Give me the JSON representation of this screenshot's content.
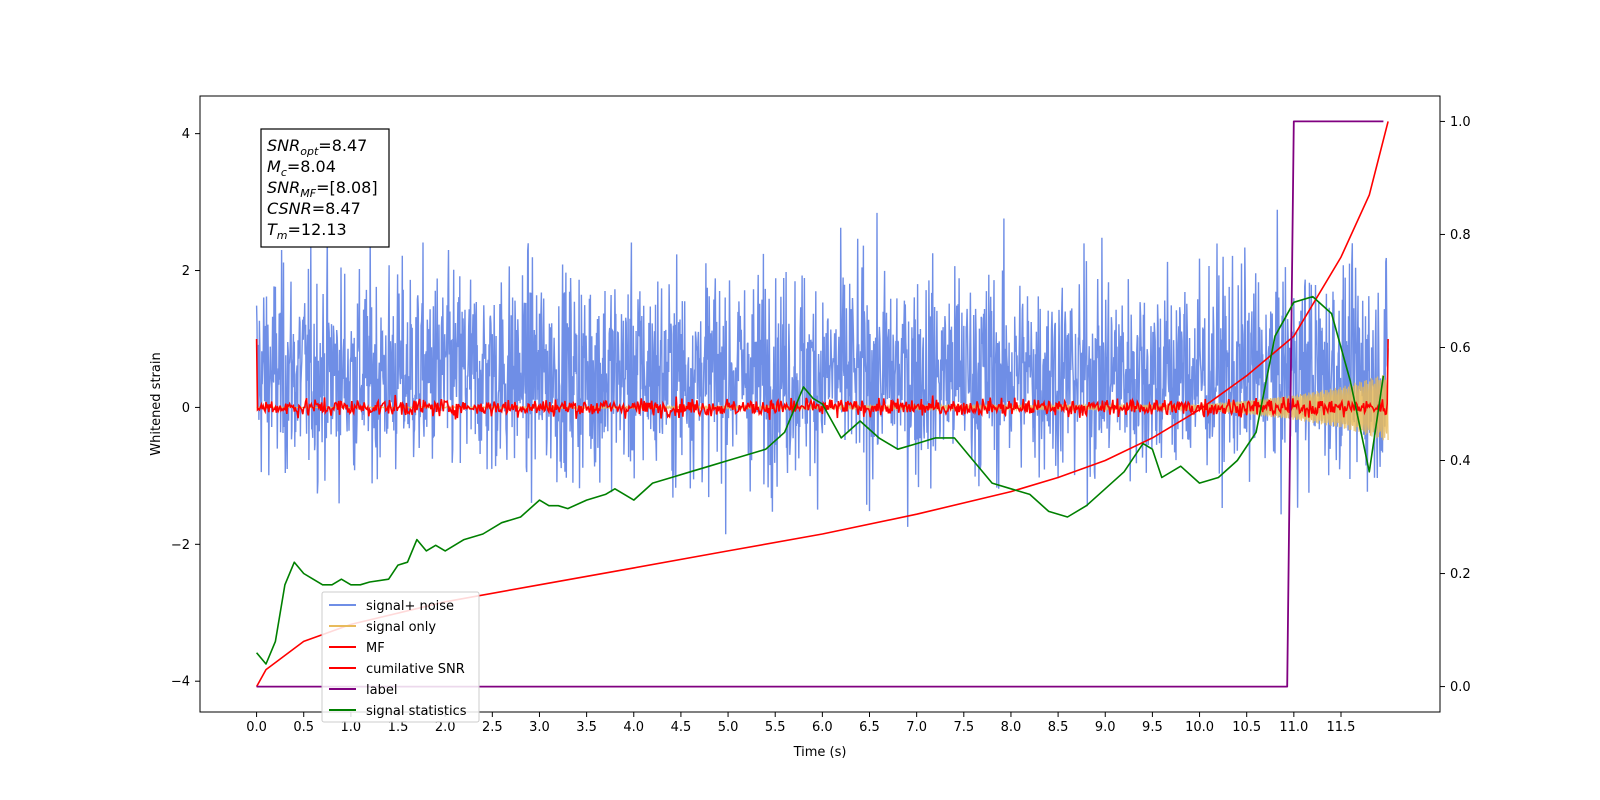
{
  "chart_data": {
    "type": "line",
    "xlabel": "Time (s)",
    "ylabel": "Whitened strain",
    "xlim": [
      -0.6,
      12.55
    ],
    "ylim": [
      -4.45,
      4.55
    ],
    "y2lim": [
      -0.045,
      1.045
    ],
    "x_ticks": [
      0.0,
      0.5,
      1.0,
      1.5,
      2.0,
      2.5,
      3.0,
      3.5,
      4.0,
      4.5,
      5.0,
      5.5,
      6.0,
      6.5,
      7.0,
      7.5,
      8.0,
      8.5,
      9.0,
      9.5,
      10.0,
      10.5,
      11.0,
      11.5
    ],
    "x_tick_labels": [
      "0.0",
      "0.5",
      "1.0",
      "1.5",
      "2.0",
      "2.5",
      "3.0",
      "3.5",
      "4.0",
      "4.5",
      "5.0",
      "5.5",
      "6.0",
      "6.5",
      "7.0",
      "7.5",
      "8.0",
      "8.5",
      "9.0",
      "9.5",
      "10.0",
      "10.5",
      "11.0",
      "11.5"
    ],
    "y_ticks": [
      4,
      2,
      0,
      -2,
      -4
    ],
    "y_tick_labels": [
      "4",
      "2",
      "0",
      "−2",
      "−4"
    ],
    "y2_ticks": [
      1.0,
      0.8,
      0.6,
      0.4,
      0.2,
      0.0
    ],
    "y2_tick_labels": [
      "1.0",
      "0.8",
      "0.6",
      "0.4",
      "0.2",
      "0.0"
    ],
    "grid": false,
    "legend_position": "lower-left",
    "annotation": {
      "lines": [
        {
          "main": "SNR",
          "sub": "opt",
          "value": "=8.47"
        },
        {
          "main": "M",
          "sub": "c",
          "value": "=8.04"
        },
        {
          "main": "SNR",
          "sub": "MF",
          "value": "=[8.08]"
        },
        {
          "main": "CSNR",
          "sub": "",
          "value": "=8.47"
        },
        {
          "main": "T",
          "sub": "m",
          "value": "=12.13"
        }
      ]
    },
    "series": [
      {
        "name": "signal+ noise",
        "axis": "left",
        "color": "#6f8ee6",
        "kind": "noise",
        "x_range": [
          0.0,
          12.0
        ],
        "baseline": 0.5,
        "band": [
          -2.9,
          4.1
        ]
      },
      {
        "name": "signal only",
        "axis": "left",
        "color": "#e8bb5c",
        "kind": "chirp",
        "x_range": [
          0.0,
          12.0
        ],
        "amplitude_end": 0.5,
        "envelope_points": [
          [
            10.0,
            0.04
          ],
          [
            10.5,
            0.1
          ],
          [
            11.0,
            0.18
          ],
          [
            11.5,
            0.3
          ],
          [
            12.0,
            0.5
          ]
        ]
      },
      {
        "name": "MF",
        "axis": "left",
        "color": "#ff0000",
        "kind": "noise",
        "x_range": [
          0.0,
          12.0
        ],
        "start_value": 1.0,
        "end_value": 1.0,
        "band": [
          -0.25,
          0.55
        ]
      },
      {
        "name": "cumilative SNR",
        "axis": "right",
        "color": "#ff0000",
        "x": [
          0.0,
          0.1,
          0.5,
          1.0,
          2.0,
          3.0,
          4.0,
          5.0,
          6.0,
          7.0,
          8.0,
          8.5,
          9.0,
          9.5,
          10.0,
          10.5,
          11.0,
          11.5,
          11.8,
          12.0
        ],
        "y": [
          0.0,
          0.03,
          0.08,
          0.11,
          0.15,
          0.18,
          0.21,
          0.24,
          0.27,
          0.305,
          0.345,
          0.37,
          0.4,
          0.44,
          0.49,
          0.55,
          0.62,
          0.76,
          0.87,
          1.0
        ]
      },
      {
        "name": "label",
        "axis": "right",
        "color": "#800080",
        "x": [
          0.0,
          10.93,
          11.0,
          11.95
        ],
        "y": [
          0.0,
          0.0,
          1.0,
          1.0
        ]
      },
      {
        "name": "signal statistics",
        "axis": "right",
        "color": "#008000",
        "x": [
          0.0,
          0.1,
          0.2,
          0.3,
          0.4,
          0.5,
          0.6,
          0.7,
          0.8,
          0.9,
          1.0,
          1.1,
          1.2,
          1.4,
          1.5,
          1.6,
          1.7,
          1.8,
          1.9,
          2.0,
          2.2,
          2.4,
          2.6,
          2.8,
          3.0,
          3.1,
          3.2,
          3.3,
          3.5,
          3.7,
          3.8,
          4.0,
          4.2,
          4.4,
          4.6,
          4.8,
          5.0,
          5.2,
          5.4,
          5.6,
          5.8,
          5.9,
          6.0,
          6.2,
          6.4,
          6.6,
          6.8,
          7.0,
          7.2,
          7.4,
          7.6,
          7.8,
          8.0,
          8.2,
          8.4,
          8.6,
          8.8,
          9.0,
          9.2,
          9.4,
          9.5,
          9.6,
          9.8,
          10.0,
          10.2,
          10.4,
          10.6,
          10.8,
          11.0,
          11.2,
          11.4,
          11.6,
          11.8,
          11.95
        ],
        "y": [
          0.06,
          0.04,
          0.08,
          0.18,
          0.22,
          0.2,
          0.19,
          0.18,
          0.18,
          0.19,
          0.18,
          0.18,
          0.185,
          0.19,
          0.215,
          0.22,
          0.26,
          0.24,
          0.25,
          0.24,
          0.26,
          0.27,
          0.29,
          0.3,
          0.33,
          0.32,
          0.32,
          0.315,
          0.33,
          0.34,
          0.35,
          0.33,
          0.36,
          0.37,
          0.38,
          0.39,
          0.4,
          0.41,
          0.42,
          0.45,
          0.53,
          0.51,
          0.5,
          0.44,
          0.47,
          0.44,
          0.42,
          0.43,
          0.44,
          0.44,
          0.4,
          0.36,
          0.35,
          0.34,
          0.31,
          0.3,
          0.32,
          0.35,
          0.38,
          0.43,
          0.42,
          0.37,
          0.39,
          0.36,
          0.37,
          0.4,
          0.45,
          0.62,
          0.68,
          0.69,
          0.66,
          0.54,
          0.38,
          0.55
        ]
      }
    ]
  }
}
